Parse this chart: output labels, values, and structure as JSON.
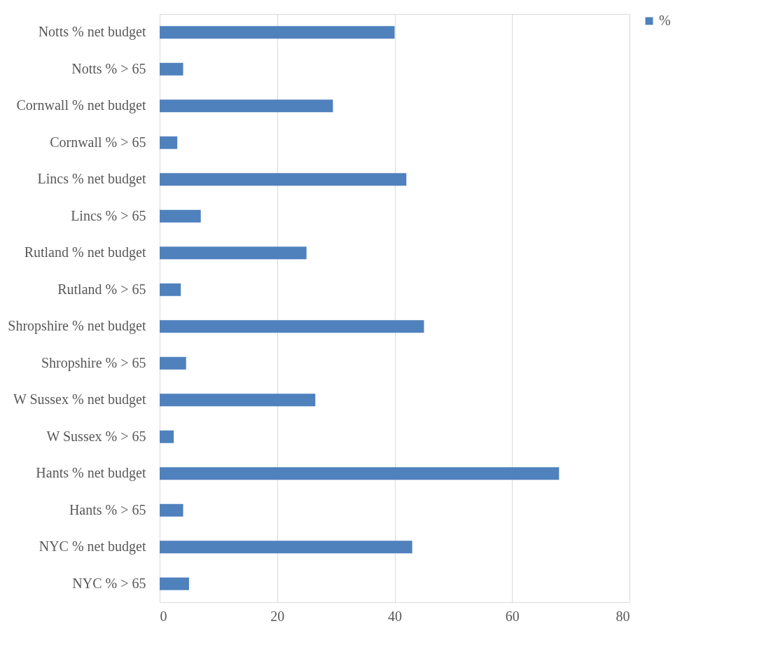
{
  "chart_data": {
    "type": "bar",
    "orientation": "horizontal",
    "categories": [
      "Notts % net budget",
      "Notts % > 65",
      "Cornwall % net budget",
      "Cornwall % > 65",
      "Lincs % net budget",
      "Lincs % > 65",
      "Rutland % net budget",
      "Rutland % > 65",
      "Shropshire % net budget",
      "Shropshire % > 65",
      "W Sussex % net budget",
      "W Sussex % > 65",
      "Hants % net budget",
      "Hants % > 65",
      "NYC  % net budget",
      "NYC % > 65"
    ],
    "series": [
      {
        "name": "%",
        "color": "#4f81bd",
        "values": [
          40,
          4,
          29.5,
          3,
          42,
          7,
          25,
          3.6,
          45,
          4.5,
          26.5,
          2.4,
          68,
          4,
          43,
          5
        ]
      }
    ],
    "xlim": [
      0,
      80
    ],
    "xticks": [
      0,
      20,
      40,
      60,
      80
    ],
    "grid": "x",
    "legend": "right"
  }
}
